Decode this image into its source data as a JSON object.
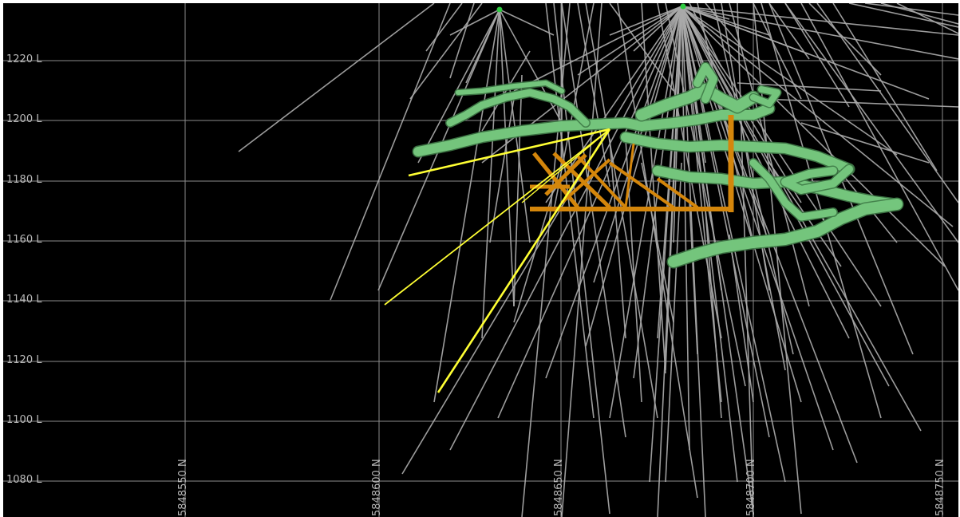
{
  "viewer": {
    "background": "#000000",
    "grid_color": "#8c8c8c",
    "elevation_labels": [
      "1220 L",
      "1200 L",
      "1180 L",
      "1160 L",
      "1140 L",
      "1120 L",
      "1100 L",
      "1080 L"
    ],
    "northing_labels": [
      "5848550 N",
      "5848600 N",
      "5848650 N",
      "5848700 N",
      "5848750 N"
    ]
  },
  "colors": {
    "drillhole": "#a9a9a9",
    "highlight_drillhole": "#ffff33",
    "orebody": "#77c97f",
    "orebody_dark": "#3f7a47",
    "development": "#d4860b",
    "collar": "#2ecc40"
  },
  "legend": {
    "drillhole": "drillhole-traces",
    "highlight": "planned-holes",
    "orebody": "ore-wireframe",
    "development": "underground-development"
  }
}
